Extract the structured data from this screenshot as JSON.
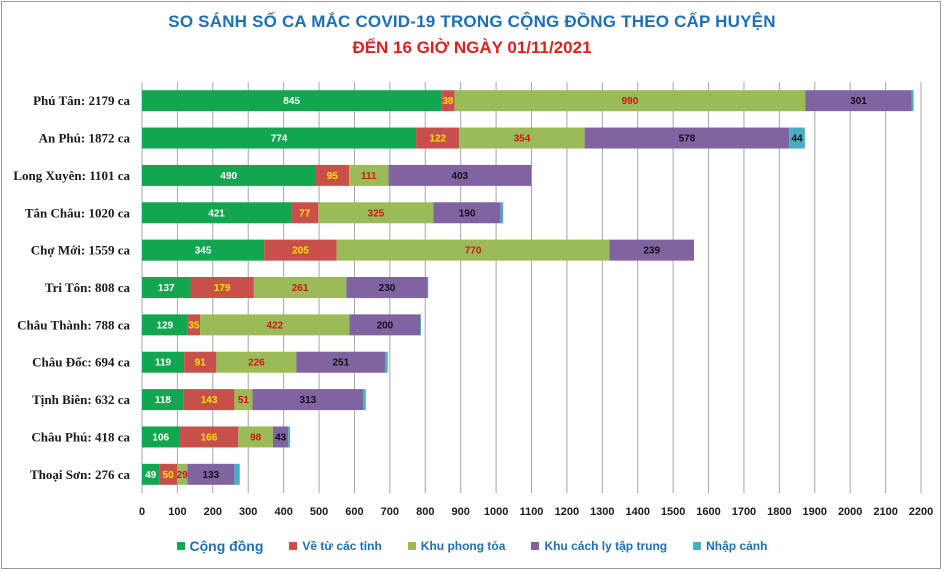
{
  "title": "SO SÁNH SỐ CA MẮC COVID-19 TRONG CỘNG ĐỒNG THEO CẤP HUYỆN",
  "subtitle": "ĐẾN 16 GIỜ NGÀY 01/11/2021",
  "chart_data": {
    "type": "bar",
    "orientation": "horizontal",
    "stacked": true,
    "categories": [
      "Phú Tân: 2179 ca",
      "An Phú: 1872 ca",
      "Long Xuyên: 1101 ca",
      "Tân Châu: 1020 ca",
      "Chợ Mới: 1559 ca",
      "Tri Tôn:  808 ca",
      "Châu Thành: 788 ca",
      "Châu Đốc: 694 ca",
      "Tịnh Biên: 632 ca",
      "Châu Phú: 418 ca",
      "Thoại  Sơn: 276 ca"
    ],
    "series": [
      {
        "name": "Cộng đồng",
        "color": "#12a651",
        "label_color": "#ffffff",
        "values": [
          845,
          774,
          490,
          421,
          345,
          137,
          129,
          119,
          118,
          106,
          49
        ]
      },
      {
        "name": "Về từ các tỉnh",
        "color": "#c8504b",
        "label_color": "#ffe100",
        "values": [
          38,
          122,
          95,
          77,
          205,
          179,
          35,
          91,
          143,
          166,
          50
        ]
      },
      {
        "name": "Khu phong tỏa",
        "color": "#9bbb59",
        "label_color": "#d0161b",
        "values": [
          990,
          354,
          111,
          325,
          770,
          261,
          422,
          226,
          51,
          98,
          29
        ]
      },
      {
        "name": "Khu cách ly tập trung",
        "color": "#8064a2",
        "label_color": "#111111",
        "values": [
          301,
          578,
          403,
          190,
          239,
          230,
          200,
          251,
          313,
          43,
          133
        ]
      },
      {
        "name": "Nhập cảnh",
        "color": "#4bacc6",
        "label_color": "#111111",
        "values": [
          5,
          44,
          2,
          7,
          0,
          1,
          2,
          7,
          7,
          5,
          15
        ]
      }
    ],
    "xlim": [
      0,
      2200
    ],
    "xticks": [
      0,
      100,
      200,
      300,
      400,
      500,
      600,
      700,
      800,
      900,
      1000,
      1100,
      1200,
      1300,
      1400,
      1500,
      1600,
      1700,
      1800,
      1900,
      2000,
      2100,
      2200
    ],
    "grid": "vertical",
    "legend": "bottom"
  }
}
